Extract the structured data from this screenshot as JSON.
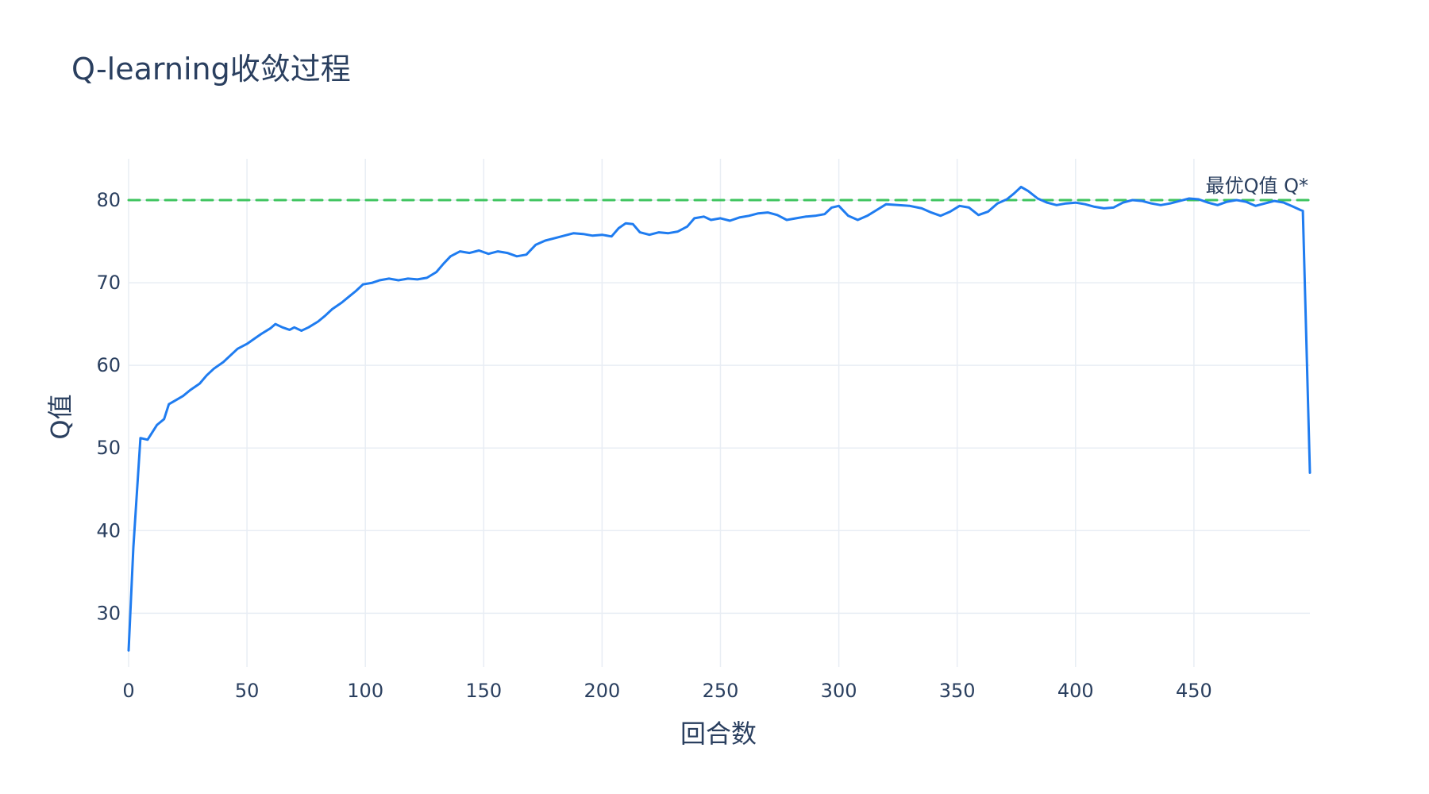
{
  "chart_data": {
    "type": "line",
    "title": "Q-learning收敛过程",
    "xlabel": "回合数",
    "ylabel": "Q值",
    "xlim": [
      0,
      499
    ],
    "ylim": [
      23.5,
      85
    ],
    "x_ticks": [
      0,
      50,
      100,
      150,
      200,
      250,
      300,
      350,
      400,
      450
    ],
    "y_ticks": [
      30,
      40,
      50,
      60,
      70,
      80
    ],
    "grid": true,
    "series": [
      {
        "color": "#1f7cf0",
        "points": [
          [
            0,
            25.5
          ],
          [
            2,
            38
          ],
          [
            5,
            51.2
          ],
          [
            8,
            51
          ],
          [
            12,
            52.8
          ],
          [
            15,
            53.5
          ],
          [
            17,
            55.3
          ],
          [
            20,
            55.8
          ],
          [
            23,
            56.3
          ],
          [
            26,
            57
          ],
          [
            30,
            57.8
          ],
          [
            33,
            58.8
          ],
          [
            36,
            59.6
          ],
          [
            40,
            60.4
          ],
          [
            43,
            61.2
          ],
          [
            46,
            62
          ],
          [
            50,
            62.6
          ],
          [
            53,
            63.2
          ],
          [
            56,
            63.8
          ],
          [
            60,
            64.5
          ],
          [
            62,
            65
          ],
          [
            65,
            64.6
          ],
          [
            68,
            64.3
          ],
          [
            70,
            64.6
          ],
          [
            73,
            64.2
          ],
          [
            76,
            64.6
          ],
          [
            80,
            65.3
          ],
          [
            83,
            66
          ],
          [
            86,
            66.8
          ],
          [
            90,
            67.6
          ],
          [
            93,
            68.3
          ],
          [
            96,
            69
          ],
          [
            99,
            69.8
          ],
          [
            103,
            70
          ],
          [
            106,
            70.3
          ],
          [
            110,
            70.5
          ],
          [
            114,
            70.3
          ],
          [
            118,
            70.5
          ],
          [
            122,
            70.4
          ],
          [
            126,
            70.6
          ],
          [
            130,
            71.3
          ],
          [
            133,
            72.3
          ],
          [
            136,
            73.2
          ],
          [
            140,
            73.8
          ],
          [
            144,
            73.6
          ],
          [
            148,
            73.9
          ],
          [
            152,
            73.5
          ],
          [
            156,
            73.8
          ],
          [
            160,
            73.6
          ],
          [
            164,
            73.2
          ],
          [
            168,
            73.4
          ],
          [
            172,
            74.6
          ],
          [
            176,
            75.1
          ],
          [
            180,
            75.4
          ],
          [
            184,
            75.7
          ],
          [
            188,
            76
          ],
          [
            192,
            75.9
          ],
          [
            196,
            75.7
          ],
          [
            200,
            75.8
          ],
          [
            204,
            75.6
          ],
          [
            207,
            76.6
          ],
          [
            210,
            77.2
          ],
          [
            213,
            77.1
          ],
          [
            216,
            76.1
          ],
          [
            220,
            75.8
          ],
          [
            224,
            76.1
          ],
          [
            228,
            76
          ],
          [
            232,
            76.2
          ],
          [
            236,
            76.8
          ],
          [
            239,
            77.8
          ],
          [
            243,
            78
          ],
          [
            246,
            77.6
          ],
          [
            250,
            77.8
          ],
          [
            254,
            77.5
          ],
          [
            258,
            77.9
          ],
          [
            262,
            78.1
          ],
          [
            266,
            78.4
          ],
          [
            270,
            78.5
          ],
          [
            274,
            78.2
          ],
          [
            278,
            77.6
          ],
          [
            282,
            77.8
          ],
          [
            286,
            78
          ],
          [
            290,
            78.1
          ],
          [
            294,
            78.3
          ],
          [
            297,
            79.1
          ],
          [
            300,
            79.3
          ],
          [
            304,
            78.1
          ],
          [
            308,
            77.6
          ],
          [
            312,
            78.1
          ],
          [
            316,
            78.8
          ],
          [
            320,
            79.5
          ],
          [
            325,
            79.4
          ],
          [
            330,
            79.3
          ],
          [
            335,
            79
          ],
          [
            339,
            78.5
          ],
          [
            343,
            78.1
          ],
          [
            347,
            78.6
          ],
          [
            351,
            79.3
          ],
          [
            355,
            79.1
          ],
          [
            359,
            78.2
          ],
          [
            363,
            78.6
          ],
          [
            367,
            79.6
          ],
          [
            371,
            80.1
          ],
          [
            374,
            80.8
          ],
          [
            377,
            81.6
          ],
          [
            380,
            81.1
          ],
          [
            384,
            80.2
          ],
          [
            388,
            79.7
          ],
          [
            392,
            79.4
          ],
          [
            396,
            79.6
          ],
          [
            400,
            79.7
          ],
          [
            404,
            79.5
          ],
          [
            408,
            79.2
          ],
          [
            412,
            79
          ],
          [
            416,
            79.1
          ],
          [
            420,
            79.7
          ],
          [
            424,
            80
          ],
          [
            428,
            79.9
          ],
          [
            432,
            79.6
          ],
          [
            436,
            79.4
          ],
          [
            440,
            79.6
          ],
          [
            444,
            79.9
          ],
          [
            448,
            80.2
          ],
          [
            452,
            80.1
          ],
          [
            456,
            79.7
          ],
          [
            460,
            79.4
          ],
          [
            464,
            79.8
          ],
          [
            468,
            80
          ],
          [
            472,
            79.8
          ],
          [
            476,
            79.3
          ],
          [
            480,
            79.6
          ],
          [
            484,
            79.9
          ],
          [
            488,
            79.7
          ],
          [
            492,
            79.2
          ],
          [
            495,
            78.8
          ],
          [
            496,
            78.7
          ],
          [
            499,
            47
          ]
        ]
      },
      {
        "color": "#3fc45f",
        "dash": "dashed",
        "points": [
          [
            0,
            80
          ],
          [
            499,
            80
          ]
        ]
      }
    ],
    "annotations": [
      {
        "text": "最优Q值 Q*",
        "x": 499,
        "y": 80
      }
    ]
  }
}
